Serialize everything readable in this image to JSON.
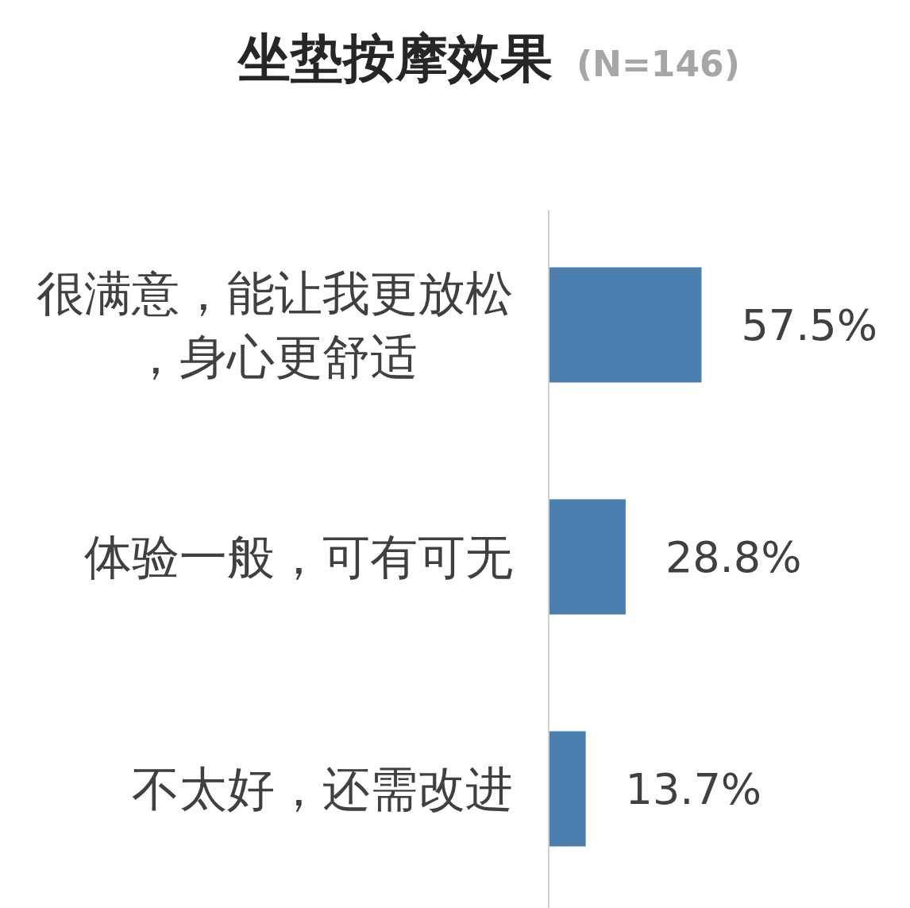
{
  "chart_data": {
    "type": "bar",
    "orientation": "horizontal",
    "title": "坐垫按摩效果",
    "subtitle": "(N=146)",
    "categories": [
      "很满意，能让我更放松，身心更舒适",
      "体验一般，可有可无",
      "不太好，还需改进"
    ],
    "values": [
      57.5,
      28.8,
      13.7
    ],
    "value_labels": [
      "57.5%",
      "28.8%",
      "13.7%"
    ],
    "color": "#4a7fb0"
  }
}
